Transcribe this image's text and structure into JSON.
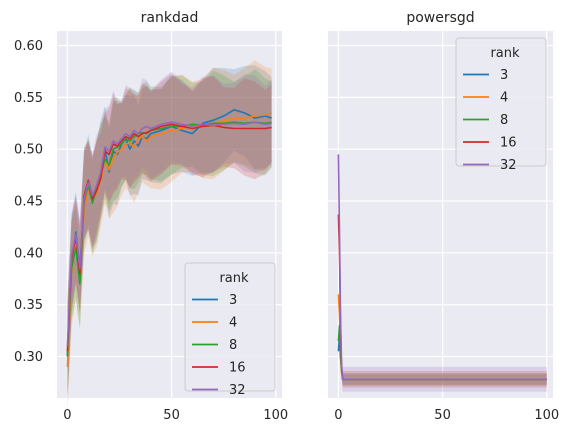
{
  "chart_data": [
    {
      "type": "line",
      "title": "rankdad",
      "xlabel": "",
      "ylabel": "",
      "xlim": [
        -5,
        103
      ],
      "ylim": [
        0.26,
        0.614
      ],
      "xticks": [
        0,
        50,
        100
      ],
      "yticks": [
        0.3,
        0.35,
        0.4,
        0.45,
        0.5,
        0.55,
        0.6
      ],
      "ytick_labels": [
        "0.30",
        "0.35",
        "0.40",
        "0.45",
        "0.50",
        "0.55",
        "0.60"
      ],
      "grid": true,
      "legend": {
        "title": "rank",
        "position": "bottom-right",
        "labels": [
          "3",
          "4",
          "8",
          "16",
          "32"
        ]
      },
      "series": [
        {
          "name": "3",
          "color": "#1f77b4",
          "x": [
            0,
            2,
            4,
            6,
            8,
            10,
            12,
            14,
            16,
            18,
            20,
            22,
            24,
            26,
            28,
            30,
            32,
            34,
            36,
            38,
            40,
            45,
            50,
            55,
            60,
            65,
            70,
            75,
            80,
            85,
            90,
            95,
            98
          ],
          "values": [
            0.3,
            0.39,
            0.42,
            0.385,
            0.445,
            0.47,
            0.455,
            0.46,
            0.478,
            0.5,
            0.478,
            0.498,
            0.495,
            0.505,
            0.51,
            0.5,
            0.508,
            0.503,
            0.512,
            0.51,
            0.515,
            0.518,
            0.522,
            0.518,
            0.515,
            0.525,
            0.528,
            0.532,
            0.538,
            0.535,
            0.53,
            0.532,
            0.53
          ],
          "ci_half": 0.045
        },
        {
          "name": "4",
          "color": "#ff7f0e",
          "x": [
            0,
            2,
            4,
            6,
            8,
            10,
            12,
            14,
            16,
            18,
            20,
            22,
            24,
            26,
            28,
            30,
            32,
            34,
            36,
            38,
            40,
            45,
            50,
            55,
            60,
            65,
            70,
            75,
            80,
            85,
            90,
            95,
            98
          ],
          "values": [
            0.29,
            0.38,
            0.41,
            0.375,
            0.44,
            0.462,
            0.45,
            0.458,
            0.47,
            0.49,
            0.48,
            0.492,
            0.497,
            0.5,
            0.505,
            0.506,
            0.502,
            0.51,
            0.512,
            0.508,
            0.512,
            0.515,
            0.518,
            0.52,
            0.522,
            0.523,
            0.525,
            0.527,
            0.53,
            0.53,
            0.532,
            0.533,
            0.535
          ],
          "ci_half": 0.048
        },
        {
          "name": "8",
          "color": "#2ca02c",
          "x": [
            0,
            2,
            4,
            6,
            8,
            10,
            12,
            14,
            16,
            18,
            20,
            22,
            24,
            26,
            28,
            30,
            32,
            34,
            36,
            38,
            40,
            45,
            50,
            55,
            60,
            65,
            70,
            75,
            80,
            85,
            90,
            95,
            98
          ],
          "values": [
            0.3,
            0.385,
            0.405,
            0.37,
            0.45,
            0.465,
            0.448,
            0.462,
            0.475,
            0.49,
            0.485,
            0.5,
            0.502,
            0.505,
            0.51,
            0.508,
            0.512,
            0.515,
            0.516,
            0.515,
            0.518,
            0.52,
            0.522,
            0.522,
            0.524,
            0.523,
            0.525,
            0.525,
            0.526,
            0.525,
            0.526,
            0.525,
            0.526
          ],
          "ci_half": 0.045
        },
        {
          "name": "16",
          "color": "#d62728",
          "x": [
            0,
            2,
            4,
            6,
            8,
            10,
            12,
            14,
            16,
            18,
            20,
            22,
            24,
            26,
            28,
            30,
            32,
            34,
            36,
            38,
            40,
            45,
            50,
            55,
            60,
            65,
            70,
            75,
            80,
            85,
            90,
            95,
            98
          ],
          "values": [
            0.305,
            0.395,
            0.415,
            0.38,
            0.455,
            0.47,
            0.452,
            0.46,
            0.472,
            0.498,
            0.495,
            0.505,
            0.503,
            0.508,
            0.512,
            0.51,
            0.515,
            0.512,
            0.515,
            0.516,
            0.518,
            0.522,
            0.524,
            0.522,
            0.52,
            0.522,
            0.523,
            0.521,
            0.52,
            0.52,
            0.52,
            0.52,
            0.521
          ],
          "ci_half": 0.043
        },
        {
          "name": "32",
          "color": "#9467bd",
          "x": [
            0,
            2,
            4,
            6,
            8,
            10,
            12,
            14,
            16,
            18,
            20,
            22,
            24,
            26,
            28,
            30,
            32,
            34,
            36,
            38,
            40,
            45,
            50,
            55,
            60,
            65,
            70,
            75,
            80,
            85,
            90,
            95,
            98
          ],
          "values": [
            0.31,
            0.398,
            0.418,
            0.385,
            0.452,
            0.468,
            0.455,
            0.465,
            0.478,
            0.502,
            0.498,
            0.508,
            0.505,
            0.51,
            0.515,
            0.512,
            0.518,
            0.515,
            0.52,
            0.522,
            0.52,
            0.524,
            0.526,
            0.524,
            0.522,
            0.524,
            0.523,
            0.524,
            0.525,
            0.524,
            0.526,
            0.524,
            0.525
          ],
          "ci_half": 0.043
        }
      ]
    },
    {
      "type": "line",
      "title": "powersgd",
      "xlabel": "",
      "ylabel": "",
      "xlim": [
        -5,
        103
      ],
      "ylim": [
        0.26,
        0.614
      ],
      "xticks": [
        0,
        50,
        100
      ],
      "yticks": [
        0.3,
        0.35,
        0.4,
        0.45,
        0.5,
        0.55,
        0.6
      ],
      "grid": true,
      "legend": {
        "title": "rank",
        "position": "top-right",
        "labels": [
          "3",
          "4",
          "8",
          "16",
          "32"
        ]
      },
      "series": [
        {
          "name": "3",
          "color": "#1f77b4",
          "x": [
            0,
            0.5,
            1,
            1.5,
            2,
            3,
            100
          ],
          "values": [
            0.305,
            0.32,
            0.3,
            0.29,
            0.278,
            0.278,
            0.278
          ],
          "ci_half": 0.005
        },
        {
          "name": "4",
          "color": "#ff7f0e",
          "x": [
            0,
            0.5,
            1,
            1.5,
            2,
            3,
            100
          ],
          "values": [
            0.36,
            0.34,
            0.31,
            0.285,
            0.278,
            0.278,
            0.278
          ],
          "ci_half": 0.006
        },
        {
          "name": "8",
          "color": "#2ca02c",
          "x": [
            0,
            0.5,
            1,
            1.5,
            2,
            3,
            100
          ],
          "values": [
            0.315,
            0.33,
            0.3,
            0.288,
            0.278,
            0.278,
            0.278
          ],
          "ci_half": 0.006
        },
        {
          "name": "16",
          "color": "#d62728",
          "x": [
            0,
            0.5,
            1,
            1.5,
            2,
            3,
            100
          ],
          "values": [
            0.437,
            0.4,
            0.33,
            0.29,
            0.278,
            0.278,
            0.278
          ],
          "ci_half": 0.008
        },
        {
          "name": "32",
          "color": "#9467bd",
          "x": [
            0,
            0.5,
            1,
            1.5,
            2,
            3,
            100
          ],
          "values": [
            0.495,
            0.42,
            0.34,
            0.295,
            0.278,
            0.278,
            0.278
          ],
          "ci_half": 0.012
        }
      ]
    }
  ]
}
